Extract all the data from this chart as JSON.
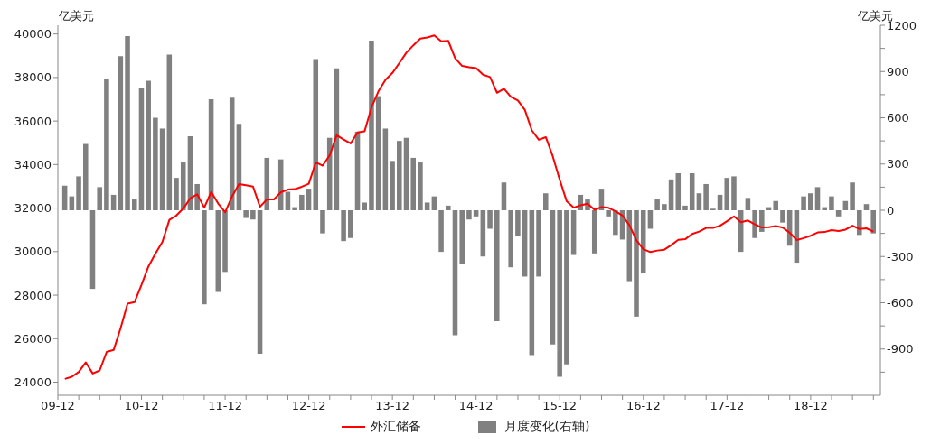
{
  "chart_data": {
    "type": "line",
    "ylabel": "亿美元",
    "y2label": "亿美元",
    "legend": "bottom",
    "marker": "none",
    "x": [
      "2010-01",
      "2010-02",
      "2010-03",
      "2010-04",
      "2010-05",
      "2010-06",
      "2010-07",
      "2010-08",
      "2010-09",
      "2010-10",
      "2010-11",
      "2010-12",
      "2011-01",
      "2011-02",
      "2011-03",
      "2011-04",
      "2011-05",
      "2011-06",
      "2011-07",
      "2011-08",
      "2011-09",
      "2011-10",
      "2011-11",
      "2011-12",
      "2012-01",
      "2012-02",
      "2012-03",
      "2012-04",
      "2012-05",
      "2012-06",
      "2012-07",
      "2012-08",
      "2012-09",
      "2012-10",
      "2012-11",
      "2012-12",
      "2013-01",
      "2013-02",
      "2013-03",
      "2013-04",
      "2013-05",
      "2013-06",
      "2013-07",
      "2013-08",
      "2013-09",
      "2013-10",
      "2013-11",
      "2013-12",
      "2014-01",
      "2014-02",
      "2014-03",
      "2014-04",
      "2014-05",
      "2014-06",
      "2014-07",
      "2014-08",
      "2014-09",
      "2014-10",
      "2014-11",
      "2014-12",
      "2015-01",
      "2015-02",
      "2015-03",
      "2015-04",
      "2015-05",
      "2015-06",
      "2015-07",
      "2015-08",
      "2015-09",
      "2015-10",
      "2015-11",
      "2015-12",
      "2016-01",
      "2016-02",
      "2016-03",
      "2016-04",
      "2016-05",
      "2016-06",
      "2016-07",
      "2016-08",
      "2016-09",
      "2016-10",
      "2016-11",
      "2016-12",
      "2017-01",
      "2017-02",
      "2017-03",
      "2017-04",
      "2017-05",
      "2017-06",
      "2017-07",
      "2017-08",
      "2017-09",
      "2017-10",
      "2017-11",
      "2017-12",
      "2018-01",
      "2018-02",
      "2018-03",
      "2018-04",
      "2018-05",
      "2018-06",
      "2018-07",
      "2018-08",
      "2018-09",
      "2018-10",
      "2018-11",
      "2018-12",
      "2019-01",
      "2019-02",
      "2019-03",
      "2019-04",
      "2019-05",
      "2019-06",
      "2019-07",
      "2019-08",
      "2019-09"
    ],
    "xlim": [
      "2009-12",
      "2019-10"
    ],
    "xticks": [
      {
        "value": "2009-12",
        "label": "09-12"
      },
      {
        "value": "2010-03",
        "label": null
      },
      {
        "value": "2010-06",
        "label": null
      },
      {
        "value": "2010-09",
        "label": null
      },
      {
        "value": "2010-12",
        "label": "10-12"
      },
      {
        "value": "2011-03",
        "label": null
      },
      {
        "value": "2011-06",
        "label": null
      },
      {
        "value": "2011-09",
        "label": null
      },
      {
        "value": "2011-12",
        "label": "11-12"
      },
      {
        "value": "2012-03",
        "label": null
      },
      {
        "value": "2012-06",
        "label": null
      },
      {
        "value": "2012-09",
        "label": null
      },
      {
        "value": "2012-12",
        "label": "12-12"
      },
      {
        "value": "2013-03",
        "label": null
      },
      {
        "value": "2013-06",
        "label": null
      },
      {
        "value": "2013-09",
        "label": null
      },
      {
        "value": "2013-12",
        "label": "13-12"
      },
      {
        "value": "2014-03",
        "label": null
      },
      {
        "value": "2014-06",
        "label": null
      },
      {
        "value": "2014-09",
        "label": null
      },
      {
        "value": "2014-12",
        "label": "14-12"
      },
      {
        "value": "2015-03",
        "label": null
      },
      {
        "value": "2015-06",
        "label": null
      },
      {
        "value": "2015-09",
        "label": null
      },
      {
        "value": "2015-12",
        "label": "15-12"
      },
      {
        "value": "2016-03",
        "label": null
      },
      {
        "value": "2016-06",
        "label": null
      },
      {
        "value": "2016-09",
        "label": null
      },
      {
        "value": "2016-12",
        "label": "16-12"
      },
      {
        "value": "2017-03",
        "label": null
      },
      {
        "value": "2017-06",
        "label": null
      },
      {
        "value": "2017-09",
        "label": null
      },
      {
        "value": "2017-12",
        "label": "17-12"
      },
      {
        "value": "2018-03",
        "label": null
      },
      {
        "value": "2018-06",
        "label": null
      },
      {
        "value": "2018-09",
        "label": null
      },
      {
        "value": "2018-12",
        "label": "18-12"
      },
      {
        "value": "2019-03",
        "label": null
      },
      {
        "value": "2019-06",
        "label": null
      },
      {
        "value": "2019-09",
        "label": null
      }
    ],
    "ylim": [
      23400,
      40400
    ],
    "yticks": [
      24000,
      26000,
      28000,
      30000,
      32000,
      34000,
      36000,
      38000,
      40000
    ],
    "y2lim": [
      -1200,
      1200
    ],
    "y2ticks": [
      {
        "value": -1050,
        "label": null
      },
      -900,
      {
        "value": -750,
        "label": null
      },
      -600,
      {
        "value": -450,
        "label": null
      },
      -300,
      {
        "value": -150,
        "label": null
      },
      0,
      {
        "value": 150,
        "label": null
      },
      300,
      {
        "value": 450,
        "label": null
      },
      600,
      {
        "value": 750,
        "label": null
      },
      900,
      {
        "value": 1050,
        "label": null
      },
      1200
    ],
    "series": [
      {
        "name": "外汇储备",
        "color": "#ff0000",
        "values": [
          24150,
          24250,
          24470,
          24910,
          24400,
          24540,
          25390,
          25480,
          26480,
          27610,
          27680,
          28470,
          29320,
          29910,
          30450,
          31460,
          31660,
          31980,
          32450,
          32630,
          32020,
          32740,
          32210,
          31810,
          32540,
          33100,
          33050,
          32990,
          32060,
          32400,
          32400,
          32730,
          32850,
          32870,
          32980,
          33120,
          34100,
          33950,
          34430,
          35350,
          35150,
          34970,
          35480,
          35530,
          36630,
          37370,
          37890,
          38210,
          38670,
          39140,
          39480,
          39790,
          39840,
          39930,
          39660,
          39690,
          38880,
          38530,
          38470,
          38430,
          38130,
          38020,
          37300,
          37480,
          37110,
          36940,
          36510,
          35570,
          35140,
          35260,
          34380,
          33300,
          32310,
          32020,
          32130,
          32200,
          31920,
          32050,
          32010,
          31850,
          31660,
          31210,
          30520,
          30110,
          29980,
          30050,
          30090,
          30300,
          30540,
          30570,
          30810,
          30920,
          31090,
          31090,
          31190,
          31400,
          31620,
          31350,
          31430,
          31250,
          31110,
          31120,
          31180,
          31100,
          30870,
          30530,
          30620,
          30730,
          30880,
          30900,
          30990,
          30950,
          31010,
          31190,
          31040,
          31070,
          30920
        ]
      },
      {
        "name": "月度变化(右轴)",
        "type": "bar",
        "axis": "y2",
        "color": "#808080",
        "values": [
          160,
          90,
          220,
          430,
          -510,
          150,
          850,
          100,
          1000,
          1130,
          70,
          790,
          840,
          600,
          530,
          1010,
          210,
          310,
          480,
          170,
          -610,
          720,
          -530,
          -400,
          730,
          560,
          -50,
          -60,
          -930,
          340,
          0,
          330,
          120,
          20,
          100,
          140,
          980,
          -150,
          470,
          920,
          -200,
          -180,
          510,
          50,
          1100,
          740,
          530,
          320,
          450,
          470,
          340,
          310,
          50,
          90,
          -270,
          30,
          -810,
          -350,
          -60,
          -40,
          -300,
          -120,
          -720,
          180,
          -370,
          -170,
          -430,
          -940,
          -430,
          110,
          -870,
          -1080,
          -1000,
          -290,
          100,
          70,
          -280,
          140,
          -40,
          -160,
          -190,
          -460,
          -690,
          -410,
          -120,
          70,
          40,
          200,
          240,
          30,
          240,
          110,
          170,
          10,
          100,
          210,
          220,
          -270,
          80,
          -180,
          -140,
          20,
          60,
          -80,
          -230,
          -340,
          90,
          110,
          150,
          20,
          90,
          -40,
          60,
          180,
          -160,
          40,
          -150
        ]
      }
    ]
  }
}
